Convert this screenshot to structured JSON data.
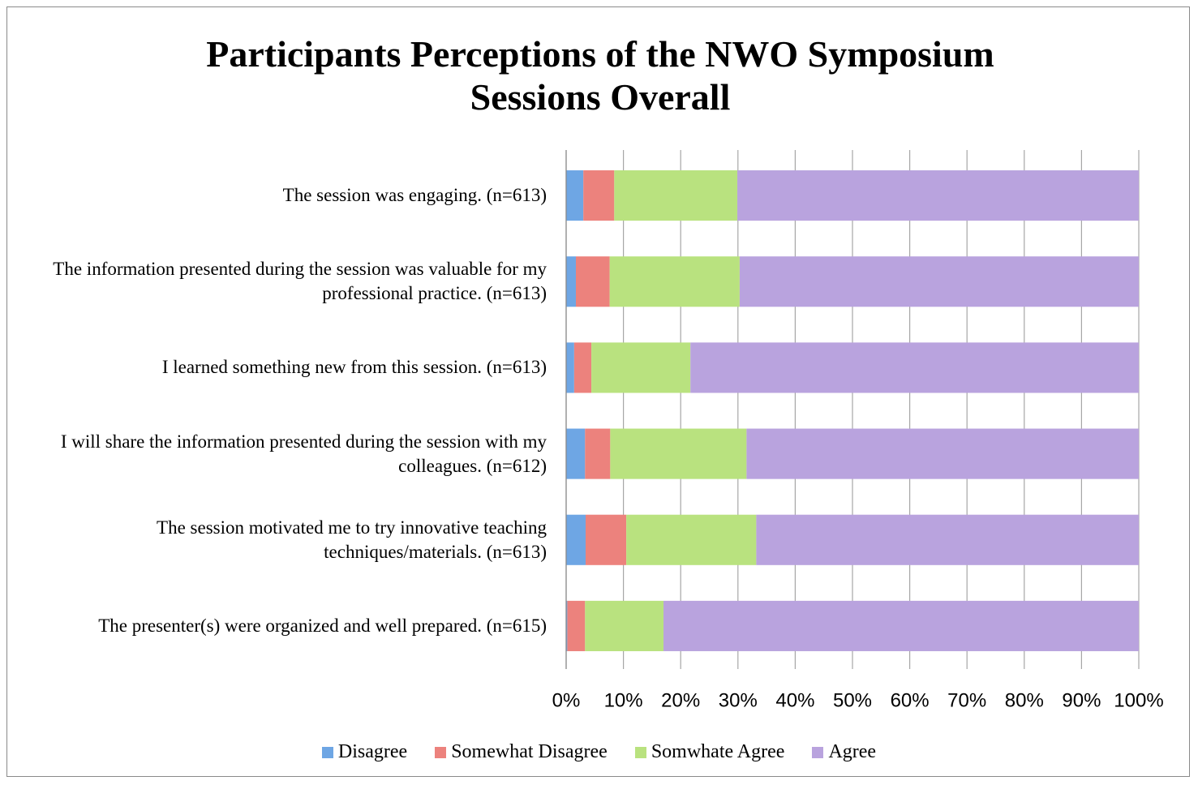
{
  "chart_data": {
    "type": "stacked-barh",
    "title": "Participants Perceptions of the NWO Symposium Sessions Overall",
    "categories": [
      "The session was engaging. (n=613)",
      "The information presented during the session was valuable for my professional practice. (n=613)",
      "I learned something new from this session. (n=613)",
      "I will share the information presented during the session with my colleagues. (n=612)",
      "The session motivated me to try innovative teaching techniques/materials. (n=613)",
      "The presenter(s)  were organized and well prepared. (n=615)"
    ],
    "series": [
      {
        "name": "Disagree",
        "color": "#6ea6e4",
        "values": [
          3.0,
          1.7,
          1.4,
          3.3,
          3.4,
          0.2
        ]
      },
      {
        "name": "Somewhat Disagree",
        "color": "#ec827d",
        "values": [
          5.4,
          5.9,
          3.0,
          4.4,
          7.1,
          3.1
        ]
      },
      {
        "name": "Somwhate Agree",
        "color": "#b9e27f",
        "values": [
          21.5,
          22.7,
          17.3,
          23.8,
          22.7,
          13.7
        ]
      },
      {
        "name": "Agree",
        "color": "#b9a3de",
        "values": [
          70.1,
          69.7,
          78.3,
          68.5,
          66.8,
          83.0
        ]
      }
    ],
    "xlim": [
      0,
      100
    ],
    "xticks": [
      {
        "value": 0,
        "label": "0%"
      },
      {
        "value": 10,
        "label": "10%"
      },
      {
        "value": 20,
        "label": "20%"
      },
      {
        "value": 30,
        "label": "30%"
      },
      {
        "value": 40,
        "label": "40%"
      },
      {
        "value": 50,
        "label": "50%"
      },
      {
        "value": 60,
        "label": "60%"
      },
      {
        "value": 70,
        "label": "70%"
      },
      {
        "value": 80,
        "label": "80%"
      },
      {
        "value": 90,
        "label": "90%"
      },
      {
        "value": 100,
        "label": "100%"
      }
    ],
    "grid": true,
    "legend": "bottom"
  }
}
